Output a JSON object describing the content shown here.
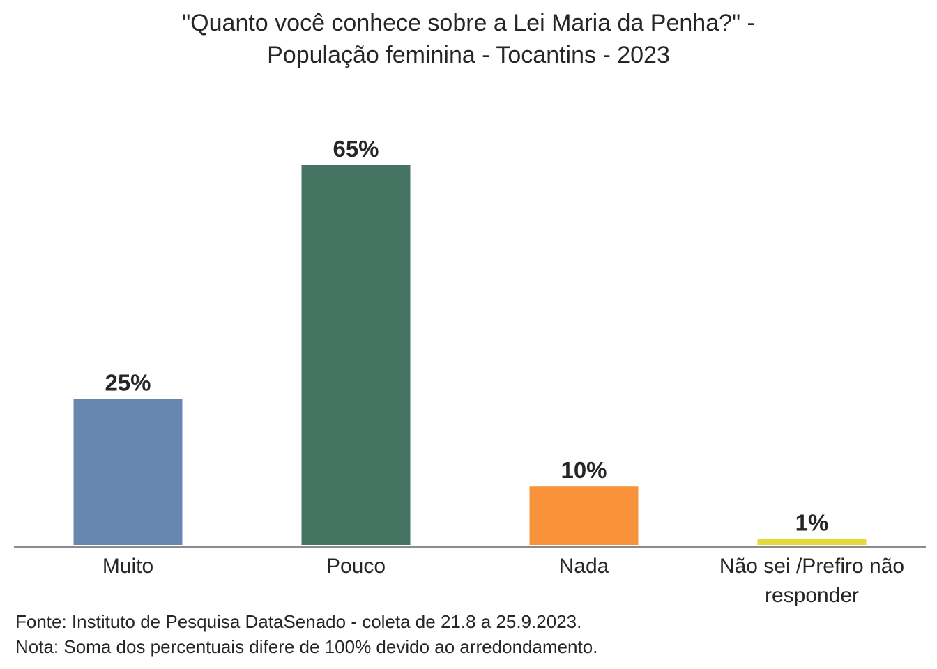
{
  "chart_data": {
    "type": "bar",
    "title_lines": [
      "\"Quanto você conhece sobre a Lei Maria da Penha?\" -",
      "População feminina - Tocantins - 2023"
    ],
    "categories": [
      [
        "Muito"
      ],
      [
        "Pouco"
      ],
      [
        "Nada"
      ],
      [
        "Não sei /Prefiro não",
        "responder"
      ]
    ],
    "values": [
      25,
      65,
      10,
      1
    ],
    "value_labels": [
      "25%",
      "65%",
      "10%",
      "1%"
    ],
    "colors": [
      "#6688B0",
      "#467463",
      "#F8923B",
      "#E3D93A"
    ],
    "ylim": [
      0,
      65
    ],
    "grid": false,
    "legend": "none"
  },
  "footer": {
    "source": "Fonte: Instituto de Pesquisa DataSenado - coleta de 21.8 a 25.9.2023.",
    "note": "Nota: Soma dos percentuais difere de 100% devido ao arredondamento."
  }
}
